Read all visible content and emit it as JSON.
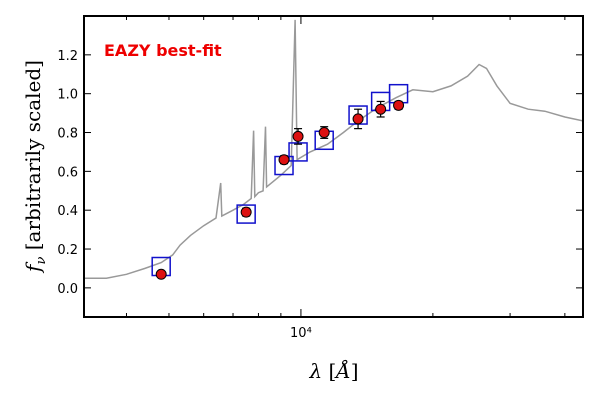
{
  "chart_data": {
    "type": "scatter",
    "annotation": "EAZY best-fit",
    "xlabel": "λ [Å]",
    "ylabel": "f_ν [arbitrarily scaled]",
    "x_scale": "log",
    "xlim": [
      3200,
      44000
    ],
    "ylim": [
      -0.15,
      1.4
    ],
    "y_ticks": [
      0.0,
      0.2,
      0.4,
      0.6,
      0.8,
      1.0,
      1.2
    ],
    "y_tick_labels": [
      "0.0",
      "0.2",
      "0.4",
      "0.6",
      "0.8",
      "1.0",
      "1.2"
    ],
    "x_tick_labels": [
      {
        "value": 10000,
        "label": "10⁴"
      }
    ],
    "colors": {
      "observed": "#dd1111",
      "model_photometry": "#1111cc",
      "sed": "#999999",
      "annotation": "#ee0000"
    },
    "sed_model": [
      [
        3200,
        0.05
      ],
      [
        3600,
        0.05
      ],
      [
        4000,
        0.07
      ],
      [
        4400,
        0.1
      ],
      [
        4800,
        0.13
      ],
      [
        5100,
        0.17
      ],
      [
        5300,
        0.22
      ],
      [
        5600,
        0.27
      ],
      [
        6000,
        0.32
      ],
      [
        6400,
        0.36
      ],
      [
        6560,
        0.54
      ],
      [
        6600,
        0.37
      ],
      [
        7000,
        0.4
      ],
      [
        7400,
        0.43
      ],
      [
        7700,
        0.46
      ],
      [
        7800,
        0.81
      ],
      [
        7850,
        0.47
      ],
      [
        8000,
        0.49
      ],
      [
        8200,
        0.5
      ],
      [
        8300,
        0.83
      ],
      [
        8350,
        0.52
      ],
      [
        9000,
        0.58
      ],
      [
        9500,
        0.63
      ],
      [
        9700,
        1.38
      ],
      [
        9800,
        0.66
      ],
      [
        10500,
        0.7
      ],
      [
        11500,
        0.74
      ],
      [
        12500,
        0.8
      ],
      [
        13500,
        0.86
      ],
      [
        15000,
        0.93
      ],
      [
        16500,
        0.98
      ],
      [
        18000,
        1.02
      ],
      [
        20000,
        1.01
      ],
      [
        22000,
        1.04
      ],
      [
        24000,
        1.09
      ],
      [
        25500,
        1.15
      ],
      [
        26500,
        1.13
      ],
      [
        28000,
        1.04
      ],
      [
        30000,
        0.95
      ],
      [
        33000,
        0.92
      ],
      [
        36000,
        0.91
      ],
      [
        40000,
        0.88
      ],
      [
        44000,
        0.86
      ]
    ],
    "model_photometry": [
      {
        "x": 4800,
        "y": 0.11
      },
      {
        "x": 7500,
        "y": 0.38
      },
      {
        "x": 9150,
        "y": 0.63
      },
      {
        "x": 9850,
        "y": 0.7
      },
      {
        "x": 11300,
        "y": 0.76
      },
      {
        "x": 13500,
        "y": 0.89
      },
      {
        "x": 15200,
        "y": 0.96
      },
      {
        "x": 16700,
        "y": 1.0
      }
    ],
    "observed_photometry": [
      {
        "x": 4800,
        "y": 0.07,
        "err": 0.01
      },
      {
        "x": 7500,
        "y": 0.39,
        "err": 0.02
      },
      {
        "x": 9150,
        "y": 0.66,
        "err": 0.02
      },
      {
        "x": 9850,
        "y": 0.78,
        "err": 0.04
      },
      {
        "x": 11300,
        "y": 0.8,
        "err": 0.03
      },
      {
        "x": 13500,
        "y": 0.87,
        "err": 0.05
      },
      {
        "x": 15200,
        "y": 0.92,
        "err": 0.04
      },
      {
        "x": 16700,
        "y": 0.94,
        "err": 0.02
      }
    ]
  }
}
